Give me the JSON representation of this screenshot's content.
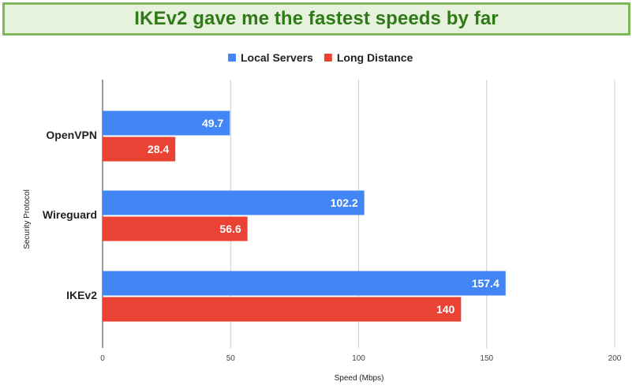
{
  "banner": {
    "title": "IKEv2 gave me the fastest speeds by far"
  },
  "chart_data": {
    "type": "bar",
    "orientation": "horizontal",
    "categories": [
      "OpenVPN",
      "Wireguard",
      "IKEv2"
    ],
    "series": [
      {
        "name": "Local Servers",
        "values": [
          49.7,
          102.2,
          157.4
        ],
        "color": "#4285f4"
      },
      {
        "name": "Long Distance",
        "values": [
          28.4,
          56.6,
          140
        ],
        "color": "#ea4335"
      }
    ],
    "xlabel": "Speed (Mbps)",
    "ylabel": "Security Protocol",
    "xlim": [
      0,
      200
    ],
    "xticks": [
      0,
      50,
      100,
      150,
      200
    ],
    "grid": true,
    "legend": "top-center",
    "data_labels": true
  }
}
